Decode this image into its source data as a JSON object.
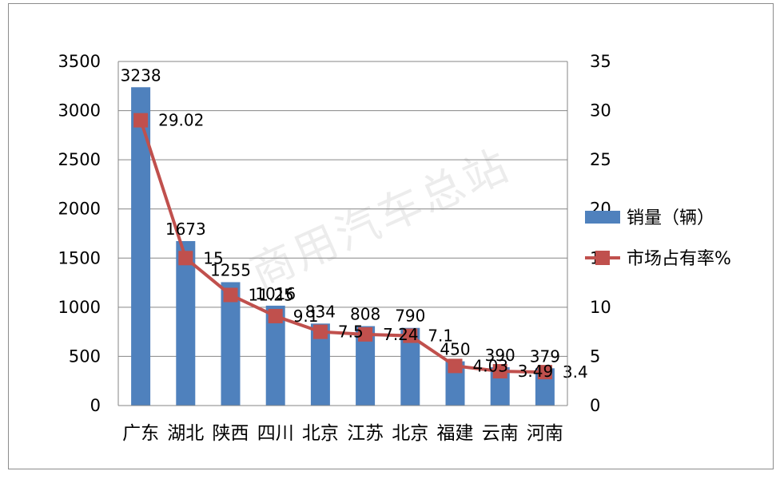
{
  "chart_data": {
    "type": "bar+line",
    "categories": [
      "广东",
      "湖北",
      "陕西",
      "四川",
      "北京",
      "江苏",
      "北京",
      "福建",
      "云南",
      "河南"
    ],
    "series": [
      {
        "name": "销量（辆）",
        "type": "bar",
        "axis": "left",
        "values": [
          3238,
          1673,
          1255,
          1016,
          834,
          808,
          790,
          450,
          390,
          379
        ],
        "labels": [
          "3238",
          "1673",
          "1255",
          "1016",
          "834",
          "808",
          "790",
          "450",
          "390",
          "379"
        ]
      },
      {
        "name": "市场占有率%",
        "type": "line",
        "axis": "right",
        "values": [
          29.02,
          15,
          11.25,
          9.1,
          7.5,
          7.24,
          7.1,
          4.03,
          3.49,
          3.4
        ],
        "labels": [
          "29.02",
          "15",
          "11.25",
          "9.1",
          "7.5",
          "7.24",
          "7.1",
          "4.03",
          "3.49",
          "3.4"
        ]
      }
    ],
    "y_left": {
      "min": 0,
      "max": 3500,
      "ticks": [
        "0",
        "500",
        "1000",
        "1500",
        "2000",
        "2500",
        "3000",
        "3500"
      ]
    },
    "y_right": {
      "min": 0,
      "max": 35,
      "ticks": [
        "0",
        "5",
        "10",
        "15",
        "20",
        "25",
        "30",
        "35"
      ]
    },
    "grid": true,
    "legend_position": "right",
    "colors": {
      "bar": "#4f81bd",
      "line": "#c0504d",
      "grid": "#868686",
      "text": "#000000"
    }
  },
  "watermark": "商用汽车总站"
}
